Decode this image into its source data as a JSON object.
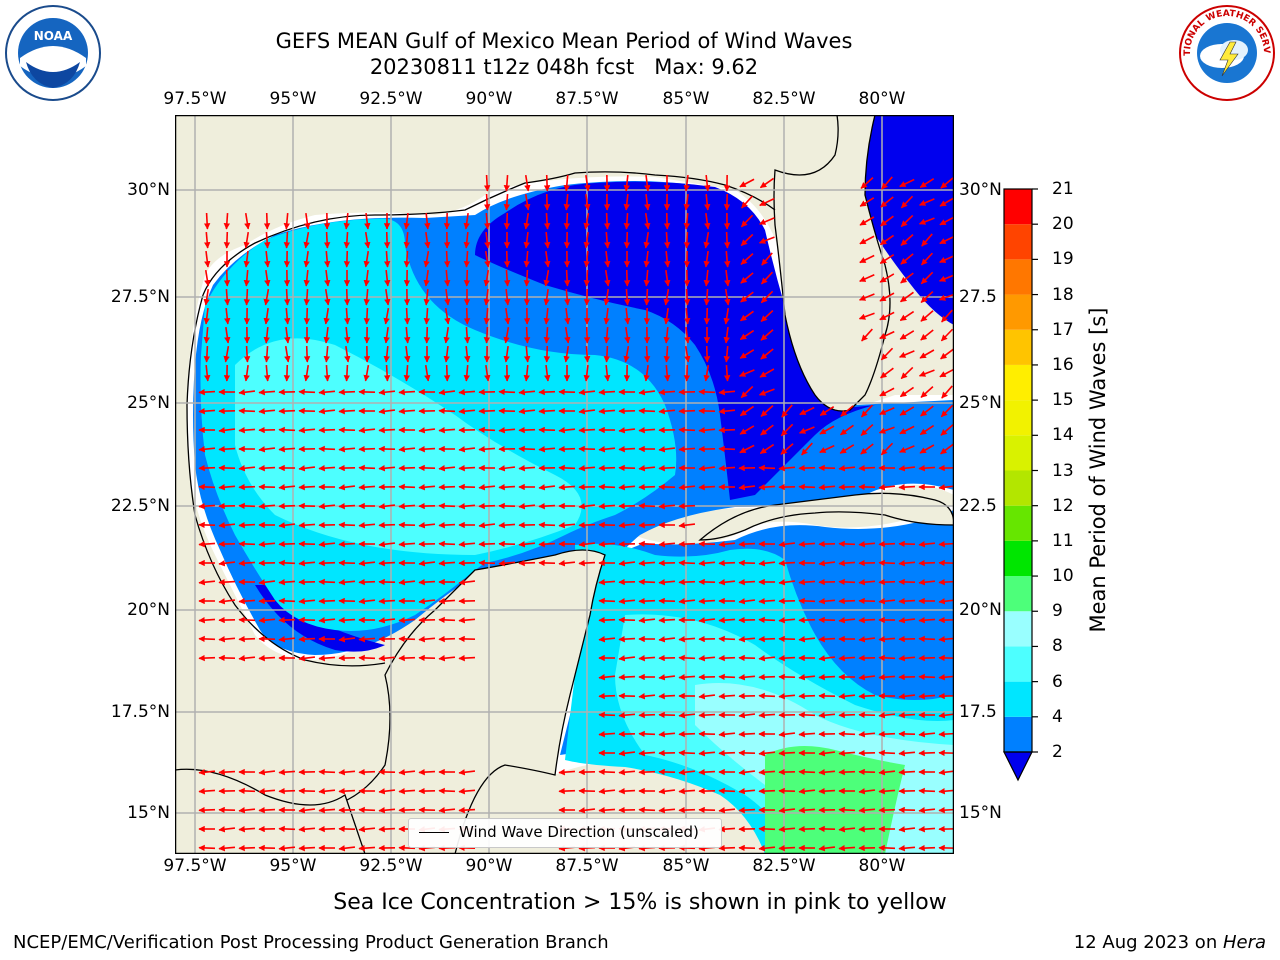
{
  "title_line1": "GEFS MEAN Gulf of Mexico Mean Period of Wind Waves",
  "title_line2": "20230811 t12z 048h fcst   Max: 9.62",
  "lon_ticks": [
    "97.5°W",
    "95°W",
    "92.5°W",
    "90°W",
    "87.5°W",
    "85°W",
    "82.5°W",
    "80°W"
  ],
  "lat_ticks_left": [
    "30°N",
    "27.5°N",
    "25°N",
    "22.5°N",
    "20°N",
    "17.5°N",
    "15°N"
  ],
  "lat_ticks_right": [
    "30°N",
    "27.5",
    "25°N",
    "22.5",
    "20°N",
    "17.5",
    "15°N"
  ],
  "legend": {
    "label": "Wind Wave Direction (unscaled)"
  },
  "colorbar": {
    "label": "Mean Period of Wind Waves [s]",
    "ticks": [
      "21",
      "20",
      "19",
      "18",
      "17",
      "16",
      "15",
      "14",
      "13",
      "12",
      "11",
      "10",
      "9",
      "8",
      "6",
      "4",
      "2"
    ],
    "bands": [
      {
        "from": 0,
        "to": 2,
        "color": "#0000ee"
      },
      {
        "from": 2,
        "to": 4,
        "color": "#0080ff"
      },
      {
        "from": 4,
        "to": 6,
        "color": "#00e6ff"
      },
      {
        "from": 6,
        "to": 8,
        "color": "#4dffff"
      },
      {
        "from": 8,
        "to": 9,
        "color": "#99ffff"
      },
      {
        "from": 9,
        "to": 10,
        "color": "#4dff7a"
      },
      {
        "from": 10,
        "to": 11,
        "color": "#00e600"
      },
      {
        "from": 11,
        "to": 12,
        "color": "#66e600"
      },
      {
        "from": 12,
        "to": 13,
        "color": "#b3e600"
      },
      {
        "from": 13,
        "to": 14,
        "color": "#d9f200"
      },
      {
        "from": 14,
        "to": 15,
        "color": "#f2f200"
      },
      {
        "from": 15,
        "to": 16,
        "color": "#ffee00"
      },
      {
        "from": 16,
        "to": 17,
        "color": "#ffc400"
      },
      {
        "from": 17,
        "to": 18,
        "color": "#ff9900"
      },
      {
        "from": 18,
        "to": 19,
        "color": "#ff7700"
      },
      {
        "from": 19,
        "to": 20,
        "color": "#ff4400"
      },
      {
        "from": 20,
        "to": 21,
        "color": "#ff0000"
      }
    ]
  },
  "caption": "Sea Ice Concentration > 15% is shown in pink to yellow",
  "footer_left": "NCEP/EMC/Verification Post Processing Product Generation Branch",
  "footer_right_date": "12 Aug 2023 on ",
  "footer_right_host": "Hera",
  "logos": {
    "left": "NOAA",
    "right": "NATIONAL WEATHER SERVICE"
  },
  "colors": {
    "land": "#efeedc",
    "ocean_border": "#ffffff",
    "arrow": "#ff0000",
    "grid": "#b0b0b0"
  }
}
